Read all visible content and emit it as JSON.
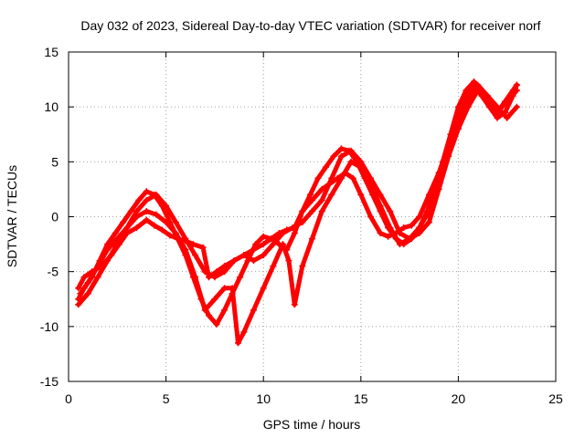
{
  "chart_data": {
    "type": "line",
    "title": "Day 032 of 2023, Sidereal Day-to-day VTEC variation (SDTVAR) for receiver norf",
    "xlabel": "GPS time / hours",
    "ylabel": "SDTVAR / TECUs",
    "xlim": [
      0,
      25
    ],
    "ylim": [
      -15,
      15
    ],
    "x_ticks": [
      0,
      5,
      10,
      15,
      20,
      25
    ],
    "y_ticks": [
      -15,
      -10,
      -5,
      0,
      5,
      10,
      15
    ],
    "grid": true,
    "marker": "plus",
    "color": "#ff0000",
    "series": [
      {
        "x": [
          0.5,
          0.8,
          1.2,
          1.7,
          2.2,
          2.6,
          3.0,
          3.5,
          4.0,
          4.4,
          4.8,
          5.2,
          5.6,
          6.0,
          6.4,
          6.9,
          7.2,
          7.6,
          8.0,
          8.5,
          9.0,
          9.5,
          10.0,
          10.4,
          10.8,
          11.2,
          11.6,
          12.0,
          12.5,
          13.0,
          13.4,
          13.8,
          14.2,
          14.6,
          15.0,
          15.5,
          16.0,
          16.4,
          16.8,
          17.2,
          17.6,
          18.0,
          18.5,
          19.0,
          19.5,
          20.0,
          20.4,
          20.8,
          21.2,
          21.6,
          22.0,
          22.4,
          22.8,
          23.0
        ],
        "y": [
          -6.5,
          -5.5,
          -5.0,
          -4.5,
          -3.5,
          -2.5,
          -1.5,
          -1.0,
          -0.3,
          -0.8,
          -1.2,
          -1.7,
          -2.0,
          -2.2,
          -2.5,
          -2.8,
          -5.5,
          -5.0,
          -4.5,
          -4.0,
          -3.5,
          -3.0,
          -2.5,
          -2.0,
          -1.5,
          -1.2,
          -1.0,
          0.5,
          1.5,
          2.5,
          3.0,
          3.5,
          4.0,
          3.5,
          2.0,
          0.0,
          -1.5,
          -1.8,
          -1.5,
          -1.0,
          -0.8,
          0.0,
          2.0,
          4.0,
          6.5,
          9.0,
          11.0,
          12.0,
          11.0,
          10.0,
          9.0,
          9.5,
          11.0,
          12.0
        ]
      },
      {
        "x": [
          0.5,
          0.8,
          1.2,
          1.6,
          2.0,
          2.4,
          2.8,
          3.2,
          3.6,
          4.0,
          4.4,
          4.8,
          5.2,
          5.6,
          6.0,
          6.4,
          6.8,
          7.2,
          7.6,
          8.0,
          8.4,
          8.8,
          9.2,
          9.6,
          10.0,
          10.4,
          10.8,
          11.2,
          11.6,
          12.0,
          12.4,
          12.8,
          13.2,
          13.6,
          14.0,
          14.4,
          14.8,
          15.2,
          15.6,
          16.0,
          16.4,
          16.8,
          17.2,
          17.6,
          18.0,
          18.4,
          18.8,
          19.2,
          19.6,
          20.0,
          20.4,
          20.8,
          21.2,
          21.6,
          22.0,
          22.4,
          22.8,
          23.0
        ],
        "y": [
          -7.5,
          -6.5,
          -5.5,
          -4.0,
          -2.5,
          -1.5,
          -0.5,
          0.5,
          1.5,
          2.3,
          2.0,
          1.0,
          -0.5,
          -2.0,
          -3.5,
          -5.5,
          -7.5,
          -9.0,
          -9.8,
          -8.5,
          -7.0,
          -5.5,
          -4.0,
          -2.5,
          -1.8,
          -2.0,
          -2.5,
          -3.0,
          -1.5,
          0.5,
          2.0,
          3.5,
          4.5,
          5.5,
          6.2,
          6.0,
          5.0,
          3.5,
          2.0,
          0.5,
          -1.0,
          -2.0,
          -2.5,
          -2.0,
          -1.0,
          0.5,
          2.5,
          5.0,
          7.5,
          10.0,
          11.5,
          12.3,
          11.5,
          10.5,
          9.5,
          10.5,
          11.5,
          12.0
        ]
      },
      {
        "x": [
          0.6,
          1.0,
          1.5,
          2.0,
          2.5,
          3.0,
          3.5,
          4.0,
          4.5,
          5.0,
          5.5,
          6.0,
          6.5,
          7.0,
          7.5,
          8.0,
          8.4,
          8.7,
          9.0,
          9.5,
          10.0,
          10.5,
          11.0,
          11.3,
          11.6,
          12.0,
          12.5,
          13.0,
          13.5,
          14.0,
          14.5,
          15.0,
          15.5,
          16.0,
          16.5,
          17.0,
          17.5,
          18.0,
          18.5,
          19.0,
          19.5,
          20.0,
          20.5,
          21.0,
          21.5,
          22.0,
          22.5,
          23.0
        ],
        "y": [
          -7.0,
          -6.0,
          -4.5,
          -3.0,
          -2.0,
          -1.0,
          0.0,
          0.5,
          0.2,
          -0.5,
          -1.5,
          -3.0,
          -5.5,
          -8.5,
          -7.5,
          -6.5,
          -6.5,
          -11.5,
          -10.5,
          -8.5,
          -6.5,
          -4.5,
          -2.5,
          -4.0,
          -8.0,
          -4.5,
          -2.0,
          0.5,
          2.0,
          3.5,
          5.0,
          4.5,
          3.0,
          1.0,
          -1.0,
          -2.5,
          -2.0,
          -1.5,
          -0.5,
          2.5,
          5.5,
          8.0,
          10.0,
          11.5,
          11.0,
          10.0,
          9.0,
          10.0
        ]
      },
      {
        "x": [
          0.5,
          1.0,
          1.5,
          2.0,
          2.5,
          3.0,
          3.5,
          4.0,
          4.5,
          5.0,
          5.5,
          6.0,
          6.5,
          7.0,
          7.5,
          8.0,
          8.5,
          9.0,
          9.5,
          10.0,
          10.5,
          11.0,
          11.5,
          12.0,
          12.5,
          13.0,
          13.5,
          14.0,
          14.5,
          15.0,
          15.5,
          16.0,
          16.5,
          17.0,
          17.5,
          18.0,
          18.5,
          19.0,
          19.5,
          20.0,
          20.5,
          21.0,
          21.5,
          22.0,
          22.5,
          23.0
        ],
        "y": [
          -8.0,
          -7.0,
          -5.5,
          -4.0,
          -2.5,
          -1.0,
          0.5,
          1.5,
          2.0,
          1.0,
          -0.5,
          -2.0,
          -3.5,
          -5.0,
          -5.5,
          -5.0,
          -4.0,
          -3.5,
          -4.0,
          -3.5,
          -2.5,
          -1.5,
          -1.0,
          -0.5,
          0.5,
          1.5,
          3.5,
          5.5,
          6.0,
          5.0,
          3.5,
          2.0,
          0.5,
          -1.5,
          -2.0,
          -1.0,
          0.5,
          3.0,
          6.0,
          8.5,
          10.5,
          12.0,
          11.0,
          9.5,
          10.5,
          11.5
        ]
      }
    ]
  }
}
